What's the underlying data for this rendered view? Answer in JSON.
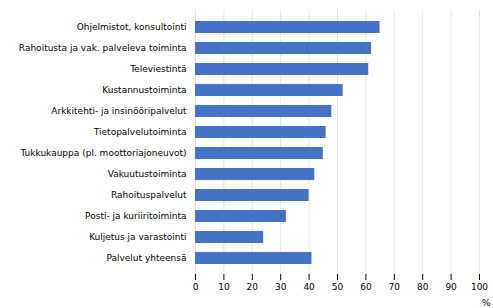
{
  "chart_data": {
    "type": "bar",
    "orientation": "horizontal",
    "categories": [
      "Palvelut yhteensä",
      "Kuljetus ja varastointi",
      "Posti- ja kuriiritoiminta",
      "Rahoituspalvelut",
      "Vakuutustoiminta",
      "Tukkukauppa (pl. moottoriajoneuvot)",
      "Tietopalvelutoiminta",
      "Arkkitehti- ja insinööripalvelut",
      "Kustannustoiminta",
      "Televiestintä",
      "Rahoitusta ja vak. palveleva toiminta",
      "Ohjelmistot, konsultointi"
    ],
    "values": [
      41,
      24,
      32,
      40,
      42,
      45,
      46,
      48,
      52,
      61,
      62,
      65
    ],
    "color": "#4472C4",
    "xlabel": "%",
    "xlim": [
      0,
      100
    ],
    "xticks": [
      0,
      10,
      20,
      30,
      40,
      50,
      60,
      70,
      80,
      90,
      100
    ],
    "grid": true
  }
}
